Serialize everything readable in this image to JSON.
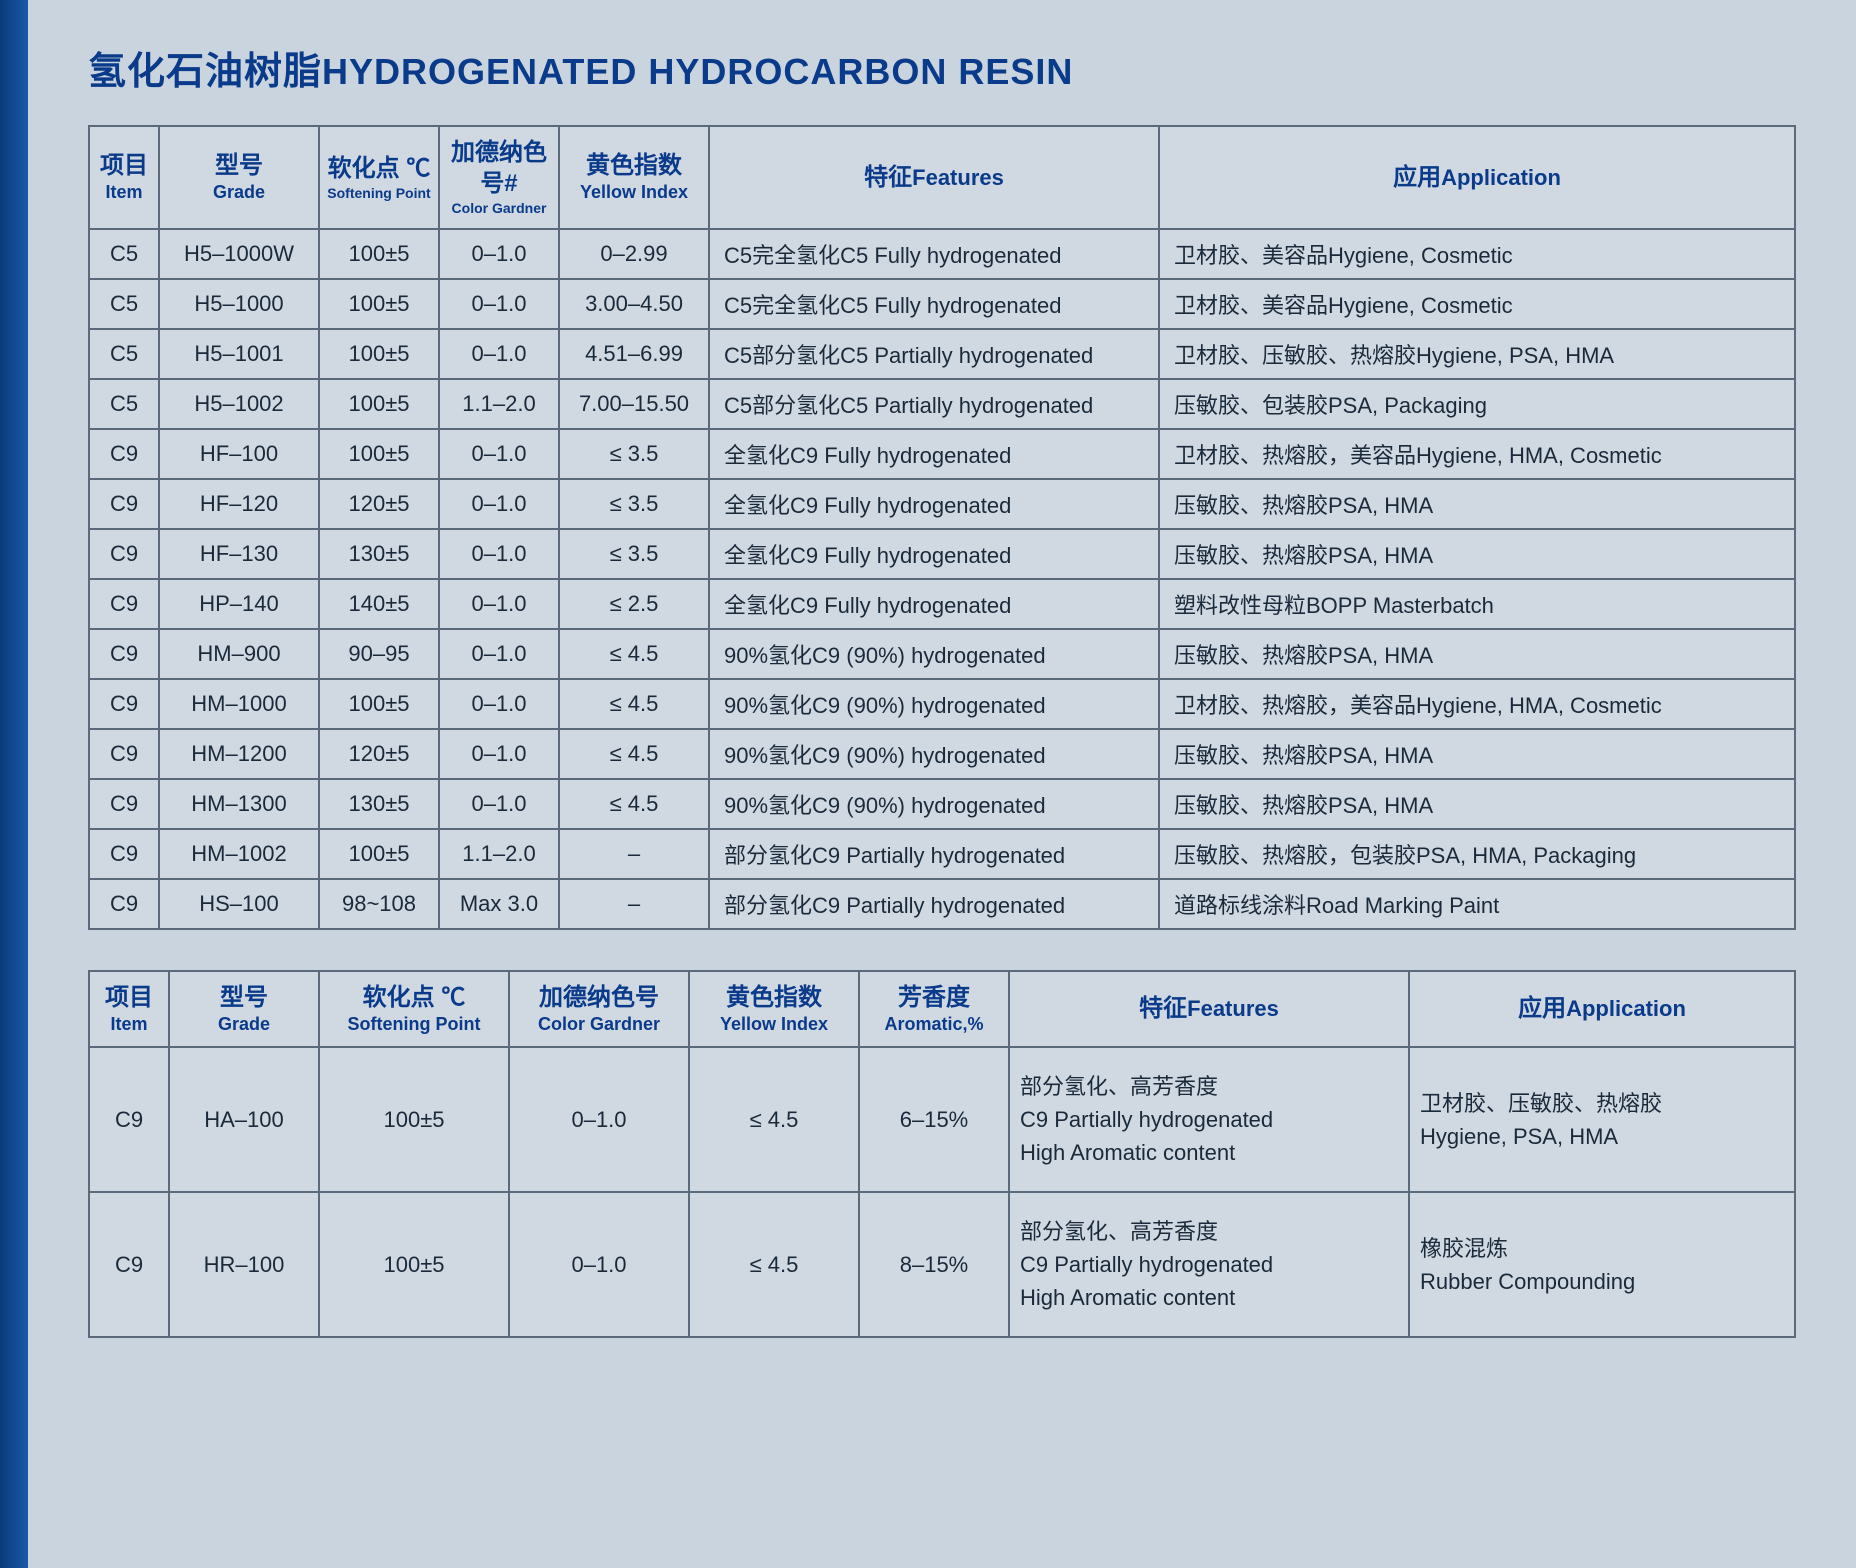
{
  "title": {
    "cn": "氢化石油树脂",
    "en": "HYDROGENATED HYDROCARBON RESIN"
  },
  "colors": {
    "heading": "#0a3a8a",
    "border": "#5a6a7a",
    "page_bg": "#cad4de",
    "outer_bg": "#b8c4d0",
    "stripe_from": "#0a3a7a",
    "stripe_to": "#1a5aa8",
    "body_text": "#1a2a3a"
  },
  "table1": {
    "headers": {
      "item": {
        "cn": "项目",
        "en": "Item"
      },
      "grade": {
        "cn": "型号",
        "en": "Grade"
      },
      "soft": {
        "cn": "软化点 ℃",
        "en": "Softening Point"
      },
      "color": {
        "cn": "加德纳色号#",
        "en": "Color Gardner"
      },
      "yellow": {
        "cn": "黄色指数",
        "en": "Yellow Index"
      },
      "feat": {
        "cn": "特征",
        "en": "Features"
      },
      "app": {
        "cn": "应用",
        "en": "Application"
      }
    },
    "rows": [
      {
        "item": "C5",
        "grade": "H5–1000W",
        "soft": "100±5",
        "color": "0–1.0",
        "yellow": "0–2.99",
        "feat": "C5完全氢化C5 Fully hydrogenated",
        "app": "卫材胶、美容品Hygiene, Cosmetic"
      },
      {
        "item": "C5",
        "grade": "H5–1000",
        "soft": "100±5",
        "color": "0–1.0",
        "yellow": "3.00–4.50",
        "feat": "C5完全氢化C5 Fully hydrogenated",
        "app": "卫材胶、美容品Hygiene, Cosmetic"
      },
      {
        "item": "C5",
        "grade": "H5–1001",
        "soft": "100±5",
        "color": "0–1.0",
        "yellow": "4.51–6.99",
        "feat": "C5部分氢化C5 Partially hydrogenated",
        "app": "卫材胶、压敏胶、热熔胶Hygiene, PSA, HMA"
      },
      {
        "item": "C5",
        "grade": "H5–1002",
        "soft": "100±5",
        "color": "1.1–2.0",
        "yellow": "7.00–15.50",
        "feat": "C5部分氢化C5 Partially hydrogenated",
        "app": "压敏胶、包装胶PSA, Packaging"
      },
      {
        "item": "C9",
        "grade": "HF–100",
        "soft": "100±5",
        "color": "0–1.0",
        "yellow": "≤ 3.5",
        "feat": "全氢化C9 Fully hydrogenated",
        "app": "卫材胶、热熔胶，美容品Hygiene, HMA, Cosmetic"
      },
      {
        "item": "C9",
        "grade": "HF–120",
        "soft": "120±5",
        "color": "0–1.0",
        "yellow": "≤ 3.5",
        "feat": "全氢化C9 Fully hydrogenated",
        "app": "压敏胶、热熔胶PSA, HMA"
      },
      {
        "item": "C9",
        "grade": "HF–130",
        "soft": "130±5",
        "color": "0–1.0",
        "yellow": "≤ 3.5",
        "feat": "全氢化C9 Fully hydrogenated",
        "app": "压敏胶、热熔胶PSA, HMA"
      },
      {
        "item": "C9",
        "grade": "HP–140",
        "soft": "140±5",
        "color": "0–1.0",
        "yellow": "≤ 2.5",
        "feat": "全氢化C9 Fully hydrogenated",
        "app": "塑料改性母粒BOPP Masterbatch"
      },
      {
        "item": "C9",
        "grade": "HM–900",
        "soft": "90–95",
        "color": "0–1.0",
        "yellow": "≤ 4.5",
        "feat": "90%氢化C9 (90%) hydrogenated",
        "app": "压敏胶、热熔胶PSA, HMA"
      },
      {
        "item": "C9",
        "grade": "HM–1000",
        "soft": "100±5",
        "color": "0–1.0",
        "yellow": "≤ 4.5",
        "feat": "90%氢化C9 (90%) hydrogenated",
        "app": "卫材胶、热熔胶，美容品Hygiene, HMA, Cosmetic"
      },
      {
        "item": "C9",
        "grade": "HM–1200",
        "soft": "120±5",
        "color": "0–1.0",
        "yellow": "≤ 4.5",
        "feat": "90%氢化C9 (90%) hydrogenated",
        "app": "压敏胶、热熔胶PSA, HMA"
      },
      {
        "item": "C9",
        "grade": "HM–1300",
        "soft": "130±5",
        "color": "0–1.0",
        "yellow": "≤ 4.5",
        "feat": "90%氢化C9 (90%) hydrogenated",
        "app": "压敏胶、热熔胶PSA, HMA"
      },
      {
        "item": "C9",
        "grade": "HM–1002",
        "soft": "100±5",
        "color": "1.1–2.0",
        "yellow": "–",
        "feat": "部分氢化C9 Partially hydrogenated",
        "app": "压敏胶、热熔胶，包装胶PSA, HMA, Packaging"
      },
      {
        "item": "C9",
        "grade": "HS–100",
        "soft": "98~108",
        "color": "Max 3.0",
        "yellow": "–",
        "feat": "部分氢化C9 Partially hydrogenated",
        "app": "道路标线涂料Road Marking Paint"
      }
    ]
  },
  "table2": {
    "headers": {
      "item": {
        "cn": "项目",
        "en": "Item"
      },
      "grade": {
        "cn": "型号",
        "en": "Grade"
      },
      "soft": {
        "cn": "软化点 ℃",
        "en": "Softening Point"
      },
      "color": {
        "cn": "加德纳色号",
        "en": "Color Gardner"
      },
      "yellow": {
        "cn": "黄色指数",
        "en": "Yellow Index"
      },
      "arom": {
        "cn": "芳香度",
        "en": "Aromatic,%"
      },
      "feat": {
        "cn": "特征",
        "en": "Features"
      },
      "app": {
        "cn": "应用",
        "en": "Application"
      }
    },
    "rows": [
      {
        "item": "C9",
        "grade": "HA–100",
        "soft": "100±5",
        "color": "0–1.0",
        "yellow": "≤ 4.5",
        "arom": "6–15%",
        "feat": "部分氢化、高芳香度\nC9 Partially hydrogenated\nHigh Aromatic content",
        "app": "卫材胶、压敏胶、热熔胶\nHygiene, PSA, HMA"
      },
      {
        "item": "C9",
        "grade": "HR–100",
        "soft": "100±5",
        "color": "0–1.0",
        "yellow": "≤ 4.5",
        "arom": "8–15%",
        "feat": "部分氢化、高芳香度\nC9 Partially hydrogenated\nHigh Aromatic content",
        "app": "橡胶混炼\nRubber Compounding"
      }
    ]
  }
}
